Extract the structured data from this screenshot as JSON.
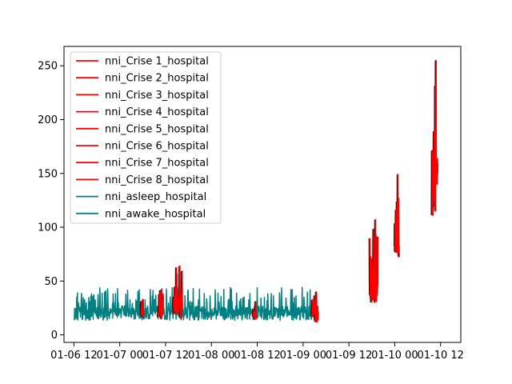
{
  "chart_data": {
    "type": "line",
    "title": "",
    "xlabel": "",
    "ylabel": "",
    "x_tick_labels": [
      "01-06 12",
      "01-07 00",
      "01-07 12",
      "01-08 00",
      "01-08 12",
      "01-09 00",
      "01-09 12",
      "01-10 00",
      "01-10 12"
    ],
    "x_tick_hours": [
      0,
      12,
      24,
      36,
      48,
      60,
      72,
      84,
      96
    ],
    "xlim_hours": [
      -2.6,
      101.3
    ],
    "ylim": [
      -7,
      268
    ],
    "y_ticks": [
      0,
      50,
      100,
      150,
      200,
      250
    ],
    "legend_position": "upper-left",
    "grid": false,
    "colors": {
      "crisis": "#ff0000",
      "baseline": "#008080",
      "shadow": "#000000"
    },
    "legend": [
      {
        "label": "nni_Crise 1_hospital",
        "color": "#ff0000"
      },
      {
        "label": "nni_Crise 2_hospital",
        "color": "#ff0000"
      },
      {
        "label": "nni_Crise 3_hospital",
        "color": "#ff0000"
      },
      {
        "label": "nni_Crise 4_hospital",
        "color": "#ff0000"
      },
      {
        "label": "nni_Crise 5_hospital",
        "color": "#ff0000"
      },
      {
        "label": "nni_Crise 6_hospital",
        "color": "#ff0000"
      },
      {
        "label": "nni_Crise 7_hospital",
        "color": "#ff0000"
      },
      {
        "label": "nni_Crise 8_hospital",
        "color": "#ff0000"
      },
      {
        "label": "nni_asleep_hospital",
        "color": "#008080"
      },
      {
        "label": "nni_awake_hospital",
        "color": "#008080"
      }
    ],
    "series_shapes": {
      "baseline": {
        "x_start_hours": 0.1,
        "x_end_hours": 62.5,
        "y_min": 6,
        "y_max": 44
      },
      "crisis_segments": [
        {
          "x_start_hours": 17.6,
          "x_end_hours": 18.4,
          "y_min": 12,
          "y_max": 33
        },
        {
          "x_start_hours": 22.0,
          "x_end_hours": 23.4,
          "y_min": 8,
          "y_max": 42
        },
        {
          "x_start_hours": 26.1,
          "x_end_hours": 28.5,
          "y_min": 3,
          "y_max": 64
        },
        {
          "x_start_hours": 46.9,
          "x_end_hours": 47.9,
          "y_min": 10,
          "y_max": 31
        },
        {
          "x_start_hours": 62.3,
          "x_end_hours": 64.0,
          "y_min": 5,
          "y_max": 40
        },
        {
          "x_start_hours": 77.5,
          "x_end_hours": 79.6,
          "y_min": 11,
          "y_max": 107
        },
        {
          "x_start_hours": 84.0,
          "x_end_hours": 85.2,
          "y_min": 53,
          "y_max": 149
        },
        {
          "x_start_hours": 93.8,
          "x_end_hours": 95.3,
          "y_min": 72,
          "y_max": 255
        }
      ]
    }
  }
}
